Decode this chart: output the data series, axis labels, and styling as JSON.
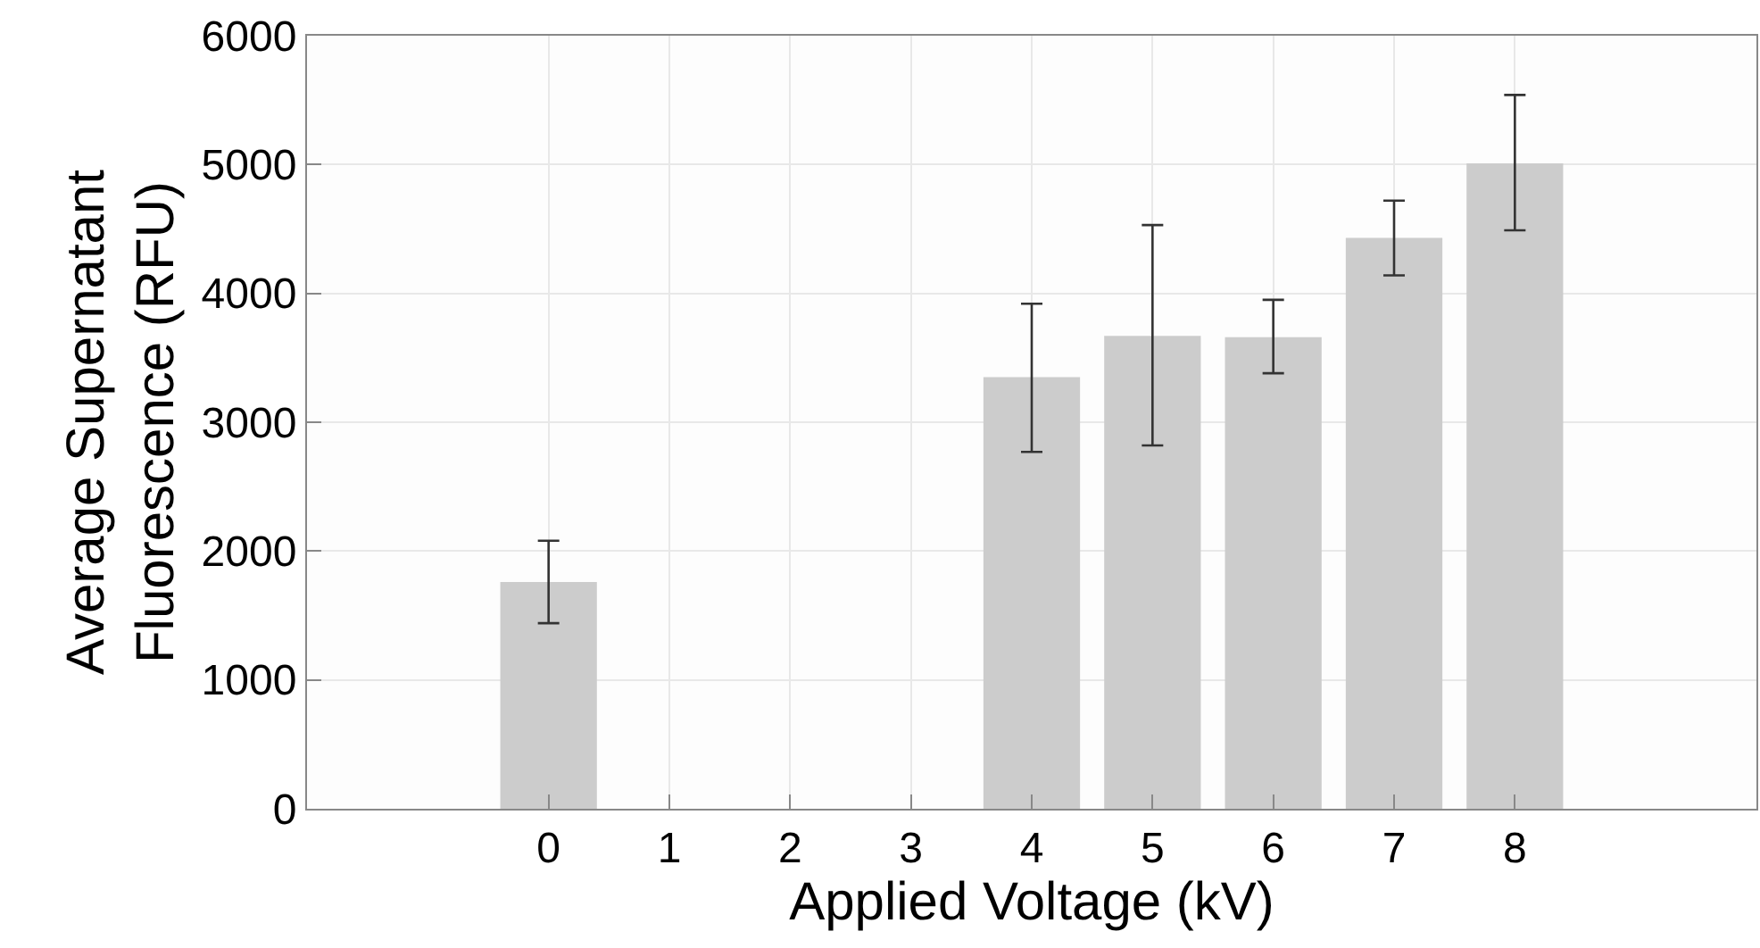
{
  "chart_data": {
    "type": "bar",
    "xlabel": "Applied Voltage (kV)",
    "ylabel": "Average Supernatant\nFluorescence (RFU)",
    "x": [
      0,
      1,
      2,
      3,
      4,
      5,
      6,
      7,
      8
    ],
    "values": [
      1760,
      null,
      null,
      null,
      3350,
      3670,
      3660,
      4430,
      5010
    ],
    "errors": [
      [
        1440,
        2080
      ],
      null,
      null,
      null,
      [
        2770,
        3920
      ],
      [
        2820,
        4530
      ],
      [
        3380,
        3950
      ],
      [
        4140,
        4720
      ],
      [
        4490,
        5540
      ]
    ],
    "color": "#cccccc",
    "xlim": [
      -2,
      10
    ],
    "xticks": [
      0,
      1,
      2,
      3,
      4,
      5,
      6,
      7,
      8
    ],
    "ylim": [
      0,
      6000
    ],
    "yticks": [
      0,
      1000,
      2000,
      3000,
      4000,
      5000,
      6000
    ],
    "grid": true,
    "legend": false
  }
}
